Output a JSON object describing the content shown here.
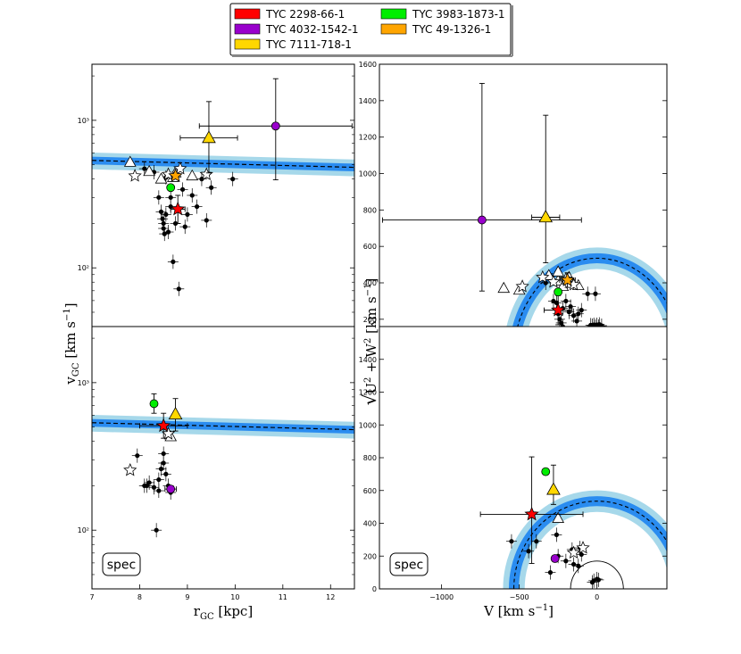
{
  "legend": [
    {
      "label": "TYC 2298-66-1",
      "color": "#ff0000"
    },
    {
      "label": "TYC 3983-1873-1",
      "color": "#00ee00"
    },
    {
      "label": "TYC 4032-1542-1",
      "color": "#9900cc"
    },
    {
      "label": "TYC 49-1326-1",
      "color": "#ffa500"
    },
    {
      "label": "TYC 7111-718-1",
      "color": "#ffd700"
    }
  ],
  "axes": {
    "left_ylabel": "v",
    "left_ylabel_sub": "GC",
    "left_ylabel_unit": " [km s",
    "left_ylabel_exp": "−1",
    "left_ylabel_close": "]",
    "left_xlabel": "r",
    "left_xlabel_sub": "GC",
    "left_xlabel_unit": " [kpc]",
    "right_ylabel_root": "√",
    "right_ylabel_a": "U",
    "right_ylabel_a_exp": "2",
    "right_ylabel_plus": " + W",
    "right_ylabel_b_exp": "2",
    "right_ylabel_unit": "  [km s",
    "right_ylabel_exp": "−1",
    "right_ylabel_close": "]",
    "right_xlabel": "V [km s",
    "right_xlabel_exp": "−1",
    "right_xlabel_close": "]"
  },
  "chart_data": [
    {
      "type": "scatter",
      "panel": "top-left",
      "xlabel": "rGC [kpc]",
      "ylabel": "vGC [km s^-1]",
      "xlim": [
        7,
        12.5
      ],
      "ylim": [
        40,
        2400
      ],
      "yscale": "log",
      "yticks": [
        100,
        1000
      ],
      "ytick_labels": [
        "10²",
        "10³"
      ],
      "escape_curve": {
        "r": [
          7,
          12.5
        ],
        "v": [
          535,
          480
        ],
        "band_dark": 0.06,
        "band_light": 0.13
      },
      "black_points": [
        [
          8.1,
          470
        ],
        [
          8.3,
          445
        ],
        [
          8.4,
          300
        ],
        [
          8.45,
          240
        ],
        [
          8.48,
          215
        ],
        [
          8.5,
          200
        ],
        [
          8.5,
          185
        ],
        [
          8.52,
          170
        ],
        [
          8.55,
          230
        ],
        [
          8.6,
          175
        ],
        [
          8.65,
          260
        ],
        [
          8.7,
          110
        ],
        [
          8.75,
          200
        ],
        [
          8.8,
          250
        ],
        [
          8.82,
          72
        ],
        [
          8.9,
          340
        ],
        [
          8.95,
          190
        ],
        [
          9.0,
          230
        ],
        [
          9.1,
          310
        ],
        [
          9.2,
          260
        ],
        [
          9.3,
          400
        ],
        [
          9.4,
          210
        ],
        [
          9.5,
          350
        ],
        [
          9.95,
          400
        ],
        [
          8.55,
          410
        ],
        [
          8.65,
          300
        ]
      ],
      "open_triangles": [
        [
          7.8,
          520
        ],
        [
          8.2,
          450
        ],
        [
          8.45,
          400
        ],
        [
          8.7,
          410
        ],
        [
          8.75,
          440
        ],
        [
          9.1,
          420
        ]
      ],
      "open_stars": [
        [
          7.9,
          420
        ],
        [
          8.6,
          430
        ],
        [
          8.85,
          470
        ],
        [
          9.4,
          430
        ]
      ],
      "highlighted": [
        {
          "star": "TYC 2298-66-1",
          "x": 8.8,
          "y": 250,
          "xerr": 0.15,
          "yerr": [
            50,
            60
          ],
          "marker": "star"
        },
        {
          "star": "TYC 3983-1873-1",
          "x": 8.65,
          "y": 350,
          "xerr": 0,
          "yerr": [
            0,
            0
          ],
          "marker": "circle"
        },
        {
          "star": "TYC 4032-1542-1",
          "x": 10.85,
          "y": 915,
          "xerr": 1.6,
          "yerr": [
            520,
            1000
          ],
          "marker": "circle"
        },
        {
          "star": "TYC 49-1326-1",
          "x": 8.75,
          "y": 420,
          "xerr": 0,
          "yerr": [
            0,
            0
          ],
          "marker": "star"
        },
        {
          "star": "TYC 7111-718-1",
          "x": 9.45,
          "y": 760,
          "xerr": 0.6,
          "yerr": [
            320,
            580
          ],
          "marker": "triangle"
        }
      ]
    },
    {
      "type": "scatter",
      "panel": "top-right",
      "xlabel": "V [km s^-1]",
      "ylabel": "sqrt(U^2+W^2) [km s^-1]",
      "xlim": [
        -1400,
        450
      ],
      "ylim": [
        160,
        1600
      ],
      "yticks": [
        200,
        400,
        600,
        800,
        1000,
        1200,
        1400,
        1600
      ],
      "escape_radius": 535,
      "disk_radius": 170,
      "disk_center_v": 0,
      "black_points": [
        [
          -260,
          290
        ],
        [
          -250,
          230
        ],
        [
          -240,
          200
        ],
        [
          -230,
          180
        ],
        [
          -220,
          260
        ],
        [
          -200,
          300
        ],
        [
          -180,
          240
        ],
        [
          -170,
          270
        ],
        [
          -150,
          220
        ],
        [
          -120,
          230
        ],
        [
          -100,
          250
        ],
        [
          -60,
          340
        ],
        [
          -10,
          340
        ],
        [
          -10,
          160
        ],
        [
          0,
          170
        ],
        [
          10,
          160
        ],
        [
          -20,
          170
        ],
        [
          -30,
          165
        ],
        [
          -40,
          168
        ],
        [
          15,
          172
        ],
        [
          30,
          165
        ],
        [
          -220,
          160
        ],
        [
          -130,
          190
        ],
        [
          -280,
          300
        ],
        [
          -330,
          400
        ]
      ],
      "open_triangles": [
        [
          -600,
          370
        ],
        [
          -500,
          360
        ],
        [
          -310,
          440
        ],
        [
          -250,
          410
        ],
        [
          -220,
          380
        ],
        [
          -180,
          430
        ],
        [
          -250,
          460
        ],
        [
          -120,
          385
        ]
      ],
      "open_stars": [
        [
          -480,
          380
        ],
        [
          -350,
          430
        ],
        [
          -280,
          405
        ],
        [
          -200,
          420
        ],
        [
          -150,
          390
        ]
      ],
      "highlighted": [
        {
          "star": "TYC 2298-66-1",
          "x": -250,
          "y": 250,
          "xerr": 90,
          "yerr": [
            80,
            80
          ],
          "marker": "star"
        },
        {
          "star": "TYC 3983-1873-1",
          "x": -250,
          "y": 350,
          "xerr": 0,
          "yerr": [
            0,
            0
          ],
          "marker": "circle"
        },
        {
          "star": "TYC 4032-1542-1",
          "x": -740,
          "y": 745,
          "xerr": 640,
          "yerr": [
            390,
            750
          ],
          "marker": "circle"
        },
        {
          "star": "TYC 49-1326-1",
          "x": -190,
          "y": 415,
          "xerr": 50,
          "yerr": [
            40,
            40
          ],
          "marker": "star"
        },
        {
          "star": "TYC 7111-718-1",
          "x": -330,
          "y": 760,
          "xerr": 90,
          "yerr": [
            250,
            560
          ],
          "marker": "triangle"
        }
      ]
    },
    {
      "type": "scatter",
      "panel": "bottom-left",
      "xlabel": "rGC [kpc]",
      "ylabel": "vGC [km s^-1]",
      "xlim": [
        7,
        12.5
      ],
      "ylim": [
        40,
        2400
      ],
      "yscale": "log",
      "xticks": [
        7,
        8,
        9,
        10,
        11,
        12
      ],
      "yticks": [
        100,
        1000
      ],
      "ytick_labels": [
        "10²",
        "10³"
      ],
      "annotation": "spec",
      "escape_curve": {
        "r": [
          7,
          12.5
        ],
        "v": [
          535,
          480
        ],
        "band_dark": 0.06,
        "band_light": 0.13
      },
      "black_points": [
        [
          7.95,
          320
        ],
        [
          8.1,
          200
        ],
        [
          8.15,
          200
        ],
        [
          8.2,
          210
        ],
        [
          8.3,
          195
        ],
        [
          8.35,
          100
        ],
        [
          8.4,
          220
        ],
        [
          8.45,
          260
        ],
        [
          8.5,
          330
        ],
        [
          8.5,
          285
        ],
        [
          8.55,
          240
        ],
        [
          8.6,
          200
        ],
        [
          8.65,
          180
        ],
        [
          8.4,
          185
        ]
      ],
      "open_triangles": [
        [
          8.65,
          430
        ]
      ],
      "open_stars": [
        [
          7.8,
          255
        ],
        [
          8.6,
          450
        ]
      ],
      "highlighted": [
        {
          "star": "TYC 2298-66-1",
          "x": 8.5,
          "y": 510,
          "xerr": 0.5,
          "yerr": [
            90,
            110
          ],
          "marker": "star"
        },
        {
          "star": "TYC 3983-1873-1",
          "x": 8.3,
          "y": 720,
          "xerr": 0,
          "yerr": [
            100,
            120
          ],
          "marker": "circle"
        },
        {
          "star": "TYC 4032-1542-1",
          "x": 8.65,
          "y": 190,
          "xerr": 0.12,
          "yerr": [
            0,
            0
          ],
          "marker": "circle"
        },
        {
          "star": "TYC 7111-718-1",
          "x": 8.75,
          "y": 610,
          "xerr": 0,
          "yerr": [
            140,
            170
          ],
          "marker": "triangle"
        }
      ]
    },
    {
      "type": "scatter",
      "panel": "bottom-right",
      "xlabel": "V [km s^-1]",
      "ylabel": "sqrt(U^2+W^2) [km s^-1]",
      "xlim": [
        -1400,
        450
      ],
      "ylim": [
        0,
        1600
      ],
      "xticks": [
        -1000,
        -500,
        0
      ],
      "xtick_labels": [
        "−1000",
        "−500",
        "0"
      ],
      "yticks": [
        0,
        200,
        400,
        600,
        800,
        1000,
        1200,
        1400
      ],
      "annotation": "spec",
      "escape_radius": 535,
      "disk_radius": 170,
      "disk_center_v": 0,
      "black_points": [
        [
          -550,
          290
        ],
        [
          -440,
          230
        ],
        [
          -390,
          290
        ],
        [
          -300,
          100
        ],
        [
          -260,
          330
        ],
        [
          -250,
          200
        ],
        [
          -200,
          170
        ],
        [
          -160,
          240
        ],
        [
          -150,
          150
        ],
        [
          -120,
          140
        ],
        [
          -110,
          250
        ],
        [
          -100,
          210
        ],
        [
          -20,
          50
        ],
        [
          0,
          60
        ],
        [
          10,
          55
        ],
        [
          -30,
          40
        ]
      ],
      "open_triangles": [
        [
          -250,
          430
        ]
      ],
      "open_stars": [
        [
          -150,
          220
        ],
        [
          -90,
          250
        ]
      ],
      "highlighted": [
        {
          "star": "TYC 2298-66-1",
          "x": -420,
          "y": 455,
          "xerr": 330,
          "yerr": [
            300,
            350
          ],
          "marker": "star"
        },
        {
          "star": "TYC 3983-1873-1",
          "x": -330,
          "y": 715,
          "xerr": 0,
          "yerr": [
            0,
            0
          ],
          "marker": "circle"
        },
        {
          "star": "TYC 4032-1542-1",
          "x": -270,
          "y": 185,
          "xerr": 0,
          "yerr": [
            0,
            0
          ],
          "marker": "circle"
        },
        {
          "star": "TYC 7111-718-1",
          "x": -280,
          "y": 605,
          "xerr": 0,
          "yerr": [
            90,
            150
          ],
          "marker": "triangle"
        }
      ]
    }
  ]
}
